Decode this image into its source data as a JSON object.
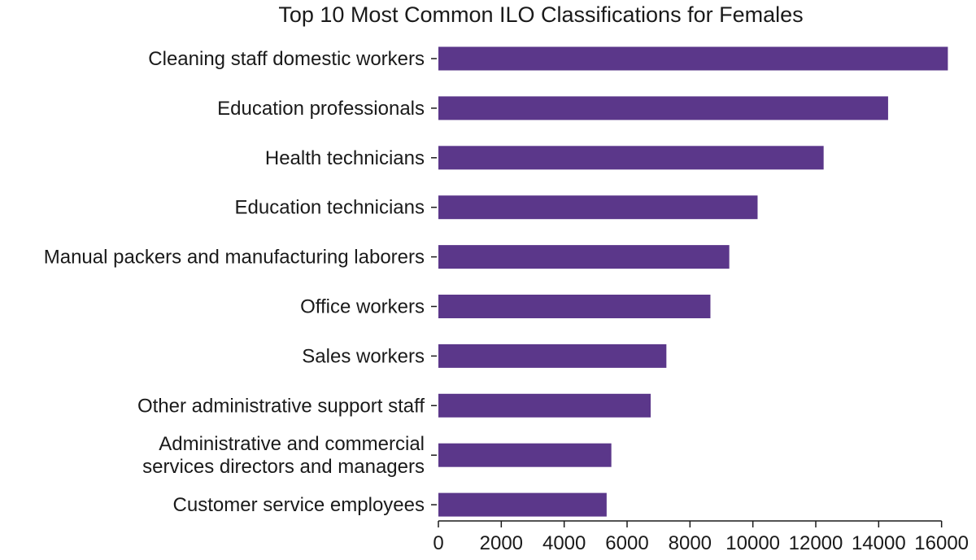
{
  "chart_data": {
    "type": "bar",
    "orientation": "horizontal",
    "title": "Top 10 Most Common ILO Classifications for Females",
    "xlabel": "",
    "ylabel": "",
    "categories": [
      "Cleaning staff domestic workers",
      "Education professionals",
      "Health technicians",
      "Education technicians",
      "Manual packers and manufacturing laborers",
      "Office workers",
      "Sales workers",
      "Other administrative support staff",
      "Administrative and commercial services directors and managers",
      "Customer service employees"
    ],
    "category_lines": [
      [
        "Cleaning staff domestic workers"
      ],
      [
        "Education professionals"
      ],
      [
        "Health technicians"
      ],
      [
        "Education technicians"
      ],
      [
        "Manual packers and manufacturing laborers"
      ],
      [
        "Office workers"
      ],
      [
        "Sales workers"
      ],
      [
        "Other administrative support staff"
      ],
      [
        "Administrative and commercial",
        "services directors and managers"
      ],
      [
        "Customer service employees"
      ]
    ],
    "values": [
      16200,
      14300,
      12250,
      10150,
      9250,
      8650,
      7250,
      6750,
      5500,
      5350
    ],
    "xlim": [
      0,
      16500
    ],
    "xticks": [
      0,
      2000,
      4000,
      6000,
      8000,
      10000,
      12000,
      14000,
      16000
    ],
    "xtick_labels": [
      "0",
      "2000",
      "4000",
      "6000",
      "8000",
      "10000",
      "12000",
      "14000",
      "16000"
    ],
    "bar_color": "#5b378a",
    "grid": false,
    "legend": "none"
  }
}
